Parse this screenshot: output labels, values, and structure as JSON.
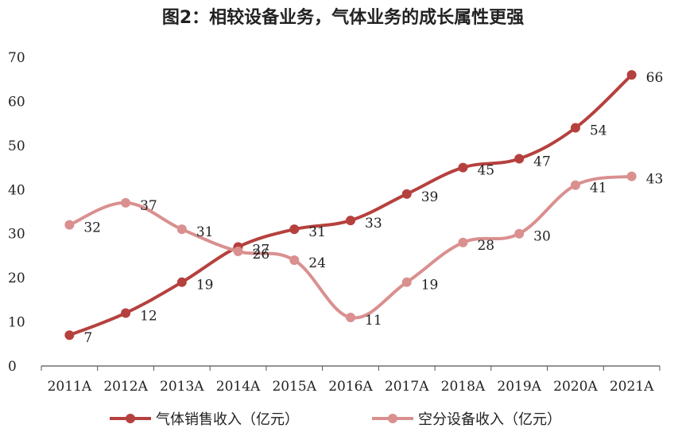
{
  "chart_data": {
    "type": "line",
    "title": "图2：相较设备业务，气体业务的成长属性更强",
    "categories": [
      "2011A",
      "2012A",
      "2013A",
      "2014A",
      "2015A",
      "2016A",
      "2017A",
      "2018A",
      "2019A",
      "2020A",
      "2021A"
    ],
    "series": [
      {
        "name": "气体销售收入（亿元）",
        "values": [
          7,
          12,
          19,
          27,
          31,
          33,
          39,
          45,
          47,
          54,
          66
        ],
        "color": "#b5413e"
      },
      {
        "name": "空分设备收入（亿元）",
        "values": [
          32,
          37,
          31,
          26,
          24,
          11,
          19,
          28,
          30,
          41,
          43
        ],
        "color": "#d9908f"
      }
    ],
    "yticks": [
      0,
      10,
      20,
      30,
      40,
      50,
      60,
      70
    ],
    "ylim": [
      0,
      70
    ],
    "grid": false,
    "legend": "bottom"
  }
}
